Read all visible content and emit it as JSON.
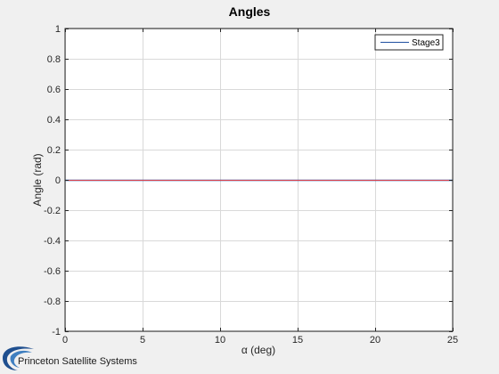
{
  "colors": {
    "series_line": "#1f4fa0",
    "series_overlay": "#d9434f",
    "grid": "#d9d9d9",
    "figure_bg": "#f0f0f0",
    "plot_bg": "#ffffff",
    "logo": "#1f4f8f"
  },
  "chart_data": {
    "type": "line",
    "title": "Angles",
    "xlabel": "α (deg)",
    "ylabel": "Angle (rad)",
    "xlim": [
      0,
      25
    ],
    "ylim": [
      -1,
      1
    ],
    "xticks": [
      0,
      5,
      10,
      15,
      20,
      25
    ],
    "yticks": [
      -1,
      -0.8,
      -0.6,
      -0.4,
      -0.2,
      0,
      0.2,
      0.4,
      0.6,
      0.8,
      1
    ],
    "xtick_labels": [
      "0",
      "5",
      "10",
      "15",
      "20",
      "25"
    ],
    "ytick_labels": [
      "-1",
      "-0.8",
      "-0.6",
      "-0.4",
      "-0.2",
      "0",
      "0.2",
      "0.4",
      "0.6",
      "0.8",
      "1"
    ],
    "grid": true,
    "legend_position": "top-right",
    "series": [
      {
        "name": "Stage3",
        "x": [
          0,
          25
        ],
        "y": [
          0,
          0
        ]
      }
    ]
  },
  "footer": {
    "logo_text": "Princeton Satellite Systems",
    "logo_icon": "pss-swoosh-logo"
  }
}
